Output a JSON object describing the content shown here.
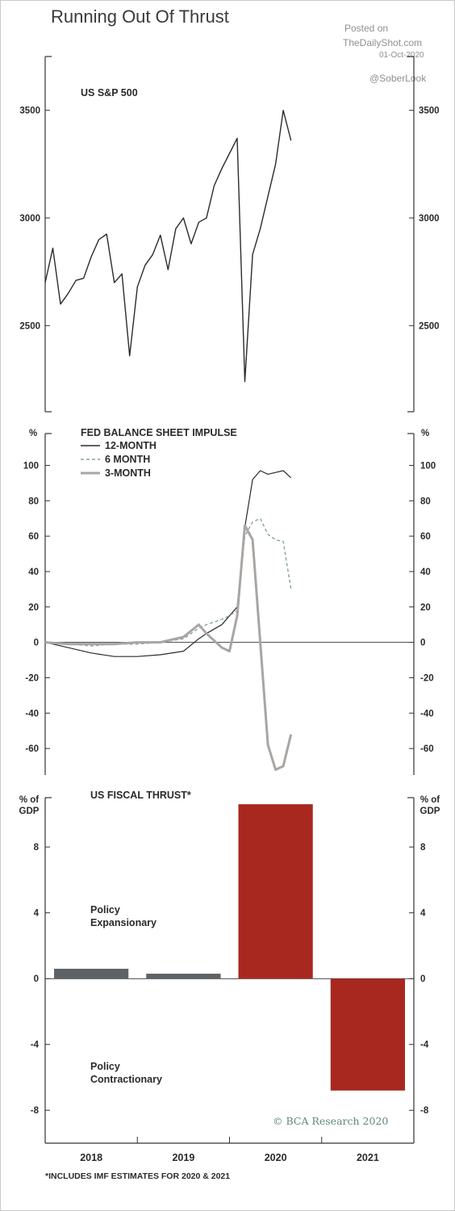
{
  "header": {
    "title": "Running Out Of Thrust",
    "watermark_posted": "Posted on",
    "watermark_site": "TheDailyShot.com",
    "watermark_date": "01-Oct-2020",
    "watermark_handle": "@SoberLook"
  },
  "footer": {
    "credit": "© BCA Research 2020",
    "note": "*INCLUDES IMF ESTIMATES FOR 2020 & 2021"
  },
  "colors": {
    "line_dark": "#2b2b2b",
    "line_dashed": "#7fa6a2",
    "line_gray": "#a9a5a3",
    "bar_gray": "#5d6266",
    "bar_red": "#a8281f",
    "credit_green": "#5d8b74"
  },
  "chart_data": [
    {
      "type": "line",
      "title": "US S&P 500",
      "ylim": [
        2100,
        3750
      ],
      "y_ticks": [
        2500,
        3000,
        3500
      ],
      "x": [
        "2018-01",
        "2018-02",
        "2018-03",
        "2018-04",
        "2018-05",
        "2018-06",
        "2018-07",
        "2018-08",
        "2018-09",
        "2018-10",
        "2018-11",
        "2018-12",
        "2019-01",
        "2019-02",
        "2019-03",
        "2019-04",
        "2019-05",
        "2019-06",
        "2019-07",
        "2019-08",
        "2019-09",
        "2019-10",
        "2019-11",
        "2019-12",
        "2020-01",
        "2020-02",
        "2020-03",
        "2020-04",
        "2020-05",
        "2020-06",
        "2020-07",
        "2020-08",
        "2020-09"
      ],
      "series": [
        {
          "values": [
            2700,
            2860,
            2600,
            2650,
            2710,
            2720,
            2820,
            2900,
            2925,
            2700,
            2740,
            2360,
            2680,
            2780,
            2830,
            2920,
            2760,
            2950,
            3000,
            2880,
            2980,
            3000,
            3150,
            3230,
            3300,
            3370,
            2240,
            2830,
            2950,
            3100,
            3250,
            3500,
            3360
          ]
        }
      ]
    },
    {
      "type": "line",
      "title": "FED BALANCE SHEET IMPULSE",
      "ylabel": "%",
      "ylim": [
        -75,
        118
      ],
      "y_ticks": [
        -60,
        -40,
        -20,
        0,
        20,
        40,
        60,
        80,
        100
      ],
      "x": [
        "2018-01",
        "2018-04",
        "2018-07",
        "2018-10",
        "2019-01",
        "2019-04",
        "2019-07",
        "2019-09",
        "2019-10",
        "2019-12",
        "2020-01",
        "2020-02",
        "2020-03",
        "2020-04",
        "2020-05",
        "2020-06",
        "2020-07",
        "2020-08",
        "2020-09"
      ],
      "series": [
        {
          "name": "12-MONTH",
          "values": [
            0,
            -3,
            -6,
            -8,
            -8,
            -7,
            -5,
            2,
            5,
            10,
            15,
            20,
            65,
            92,
            97,
            95,
            96,
            97,
            93
          ]
        },
        {
          "name": "6 MONTH",
          "values": [
            0,
            -1,
            -2,
            -1,
            -1,
            0,
            2,
            8,
            10,
            13,
            15,
            18,
            60,
            68,
            70,
            61,
            58,
            57,
            30
          ]
        },
        {
          "name": "3-MONTH",
          "values": [
            0,
            -1,
            -1,
            -1,
            0,
            0,
            3,
            10,
            5,
            -3,
            -5,
            15,
            66,
            58,
            0,
            -58,
            -72,
            -70,
            -52
          ]
        }
      ]
    },
    {
      "type": "bar",
      "title": "US FISCAL THRUST*",
      "ylabel": "% of GDP",
      "ylim": [
        -10,
        11
      ],
      "y_ticks": [
        -8,
        -4,
        0,
        4,
        8
      ],
      "categories": [
        "2018",
        "2019",
        "2020",
        "2021"
      ],
      "values": [
        0.6,
        0.3,
        10.6,
        -6.8
      ],
      "annotations": [
        "Policy Expansionary",
        "Policy Contractionary"
      ]
    }
  ]
}
